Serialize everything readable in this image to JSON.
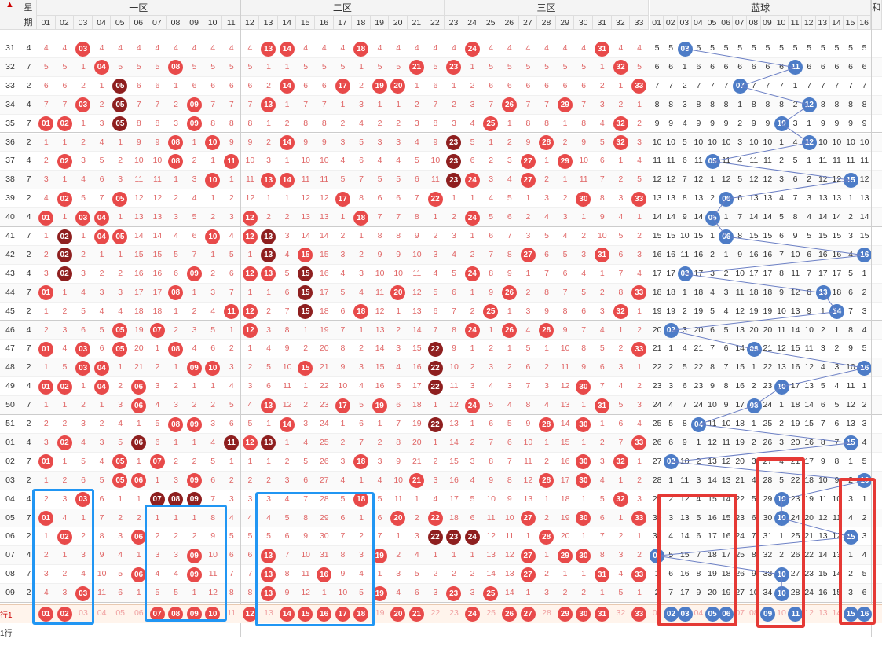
{
  "header": {
    "week_label_1": "星",
    "week_label_2": "期",
    "zones": [
      "一区",
      "二区",
      "三区",
      "蓝球"
    ],
    "next_col_label": "和",
    "red_numbers": [
      "01",
      "02",
      "03",
      "04",
      "05",
      "06",
      "07",
      "08",
      "09",
      "10",
      "11",
      "12",
      "13",
      "14",
      "15",
      "16",
      "17",
      "18",
      "19",
      "20",
      "21",
      "22",
      "23",
      "24",
      "25",
      "26",
      "27",
      "28",
      "29",
      "30",
      "31",
      "32",
      "33"
    ],
    "blue_numbers": [
      "01",
      "02",
      "03",
      "04",
      "05",
      "06",
      "07",
      "08",
      "09",
      "10",
      "11",
      "12",
      "13",
      "14",
      "15",
      "16"
    ]
  },
  "rows": [
    {
      "issue": "31",
      "week": "4",
      "red": [
        3,
        13,
        14,
        18,
        24,
        31
      ],
      "blue": 3,
      "dark": []
    },
    {
      "issue": "32",
      "week": "7",
      "red": [
        4,
        8,
        21,
        23,
        32
      ],
      "blue": 11,
      "dark": []
    },
    {
      "issue": "33",
      "week": "2",
      "red": [
        5,
        14,
        17,
        19,
        20,
        33
      ],
      "blue": 7,
      "dark": [
        5
      ]
    },
    {
      "issue": "34",
      "week": "4",
      "red": [
        3,
        5,
        9,
        13,
        26,
        29
      ],
      "blue": 12,
      "dark": [
        5
      ]
    },
    {
      "issue": "35",
      "week": "7",
      "red": [
        1,
        2,
        5,
        9,
        25,
        32
      ],
      "blue": 10,
      "dark": [
        5
      ]
    },
    {
      "issue": "36",
      "week": "2",
      "red": [
        8,
        10,
        14,
        23,
        28,
        32
      ],
      "blue": 12,
      "dark": [
        23
      ]
    },
    {
      "issue": "37",
      "week": "4",
      "red": [
        2,
        8,
        11,
        23,
        27,
        29
      ],
      "blue": 5,
      "dark": [
        23
      ]
    },
    {
      "issue": "38",
      "week": "7",
      "red": [
        10,
        13,
        14,
        23,
        24,
        27
      ],
      "blue": 15,
      "dark": [
        23
      ]
    },
    {
      "issue": "39",
      "week": "2",
      "red": [
        2,
        5,
        17,
        22,
        30,
        33
      ],
      "blue": 6,
      "dark": []
    },
    {
      "issue": "40",
      "week": "4",
      "red": [
        1,
        3,
        4,
        12,
        18,
        24
      ],
      "blue": 5,
      "dark": []
    },
    {
      "issue": "41",
      "week": "7",
      "red": [
        2,
        4,
        5,
        10,
        12,
        13
      ],
      "blue": 6,
      "dark": [
        2,
        13
      ]
    },
    {
      "issue": "42",
      "week": "2",
      "red": [
        2,
        13,
        15,
        27,
        31
      ],
      "blue": 16,
      "dark": [
        2,
        13
      ]
    },
    {
      "issue": "43",
      "week": "4",
      "red": [
        2,
        9,
        12,
        13,
        15,
        24
      ],
      "blue": 3,
      "dark": [
        2,
        15
      ]
    },
    {
      "issue": "44",
      "week": "7",
      "red": [
        1,
        8,
        15,
        20,
        26,
        33
      ],
      "blue": 13,
      "dark": [
        15
      ]
    },
    {
      "issue": "45",
      "week": "2",
      "red": [
        11,
        12,
        15,
        18,
        25,
        32
      ],
      "blue": 14,
      "dark": [
        15
      ]
    },
    {
      "issue": "46",
      "week": "4",
      "red": [
        5,
        7,
        12,
        24,
        26,
        28
      ],
      "blue": 2,
      "dark": []
    },
    {
      "issue": "47",
      "week": "7",
      "red": [
        1,
        3,
        5,
        8,
        22,
        33
      ],
      "blue": 8,
      "dark": [
        22
      ]
    },
    {
      "issue": "48",
      "week": "2",
      "red": [
        3,
        4,
        9,
        10,
        15,
        22
      ],
      "blue": 16,
      "dark": [
        22
      ]
    },
    {
      "issue": "49",
      "week": "4",
      "red": [
        1,
        2,
        4,
        6,
        22,
        30
      ],
      "blue": 10,
      "dark": [
        22
      ]
    },
    {
      "issue": "50",
      "week": "7",
      "red": [
        6,
        13,
        17,
        19,
        24,
        31
      ],
      "blue": 8,
      "dark": []
    },
    {
      "issue": "51",
      "week": "2",
      "red": [
        8,
        9,
        14,
        22,
        28,
        30
      ],
      "blue": 4,
      "dark": [
        22
      ]
    },
    {
      "issue": "01",
      "week": "4",
      "red": [
        2,
        6,
        11,
        12,
        13,
        33
      ],
      "blue": 15,
      "dark": [
        6,
        11,
        13
      ]
    },
    {
      "issue": "02",
      "week": "7",
      "red": [
        1,
        5,
        7,
        18,
        30,
        32
      ],
      "blue": 2,
      "dark": []
    },
    {
      "issue": "03",
      "week": "2",
      "red": [
        5,
        6,
        9,
        21,
        28,
        30
      ],
      "blue": 16,
      "dark": []
    },
    {
      "issue": "04",
      "week": "4",
      "red": [
        3,
        7,
        8,
        9,
        18,
        32
      ],
      "blue": 10,
      "dark": [
        7,
        8,
        9
      ]
    },
    {
      "issue": "05",
      "week": "7",
      "red": [
        1,
        20,
        22,
        27,
        30,
        33
      ],
      "blue": 10,
      "dark": []
    },
    {
      "issue": "06",
      "week": "2",
      "red": [
        2,
        6,
        22,
        23,
        24,
        28
      ],
      "blue": 15,
      "dark": [
        22,
        23,
        24
      ]
    },
    {
      "issue": "07",
      "week": "4",
      "red": [
        9,
        13,
        19,
        27,
        29,
        30
      ],
      "blue": 1,
      "dark": []
    },
    {
      "issue": "08",
      "week": "7",
      "red": [
        6,
        9,
        13,
        16,
        27,
        31,
        33
      ],
      "blue": 10,
      "dark": []
    },
    {
      "issue": "09",
      "week": "2",
      "red": [
        3,
        13,
        19,
        23,
        25
      ],
      "blue": 10,
      "dark": []
    }
  ],
  "forecast_row": {
    "label": "行1",
    "red": [
      1,
      2,
      7,
      8,
      9,
      10,
      12,
      14,
      15,
      16,
      17,
      18,
      20,
      21,
      24,
      26,
      27,
      29,
      30,
      31,
      33
    ],
    "blue": [
      2,
      3,
      5,
      6,
      9,
      11,
      15,
      16
    ]
  },
  "footer_label": "1行",
  "colors": {
    "red_ball": "#e84a4a",
    "dark_ball": "#8e1f1f",
    "blue_ball": "#4d7cc7",
    "blue_highlight": "#2196f3",
    "red_highlight": "#e53935"
  }
}
